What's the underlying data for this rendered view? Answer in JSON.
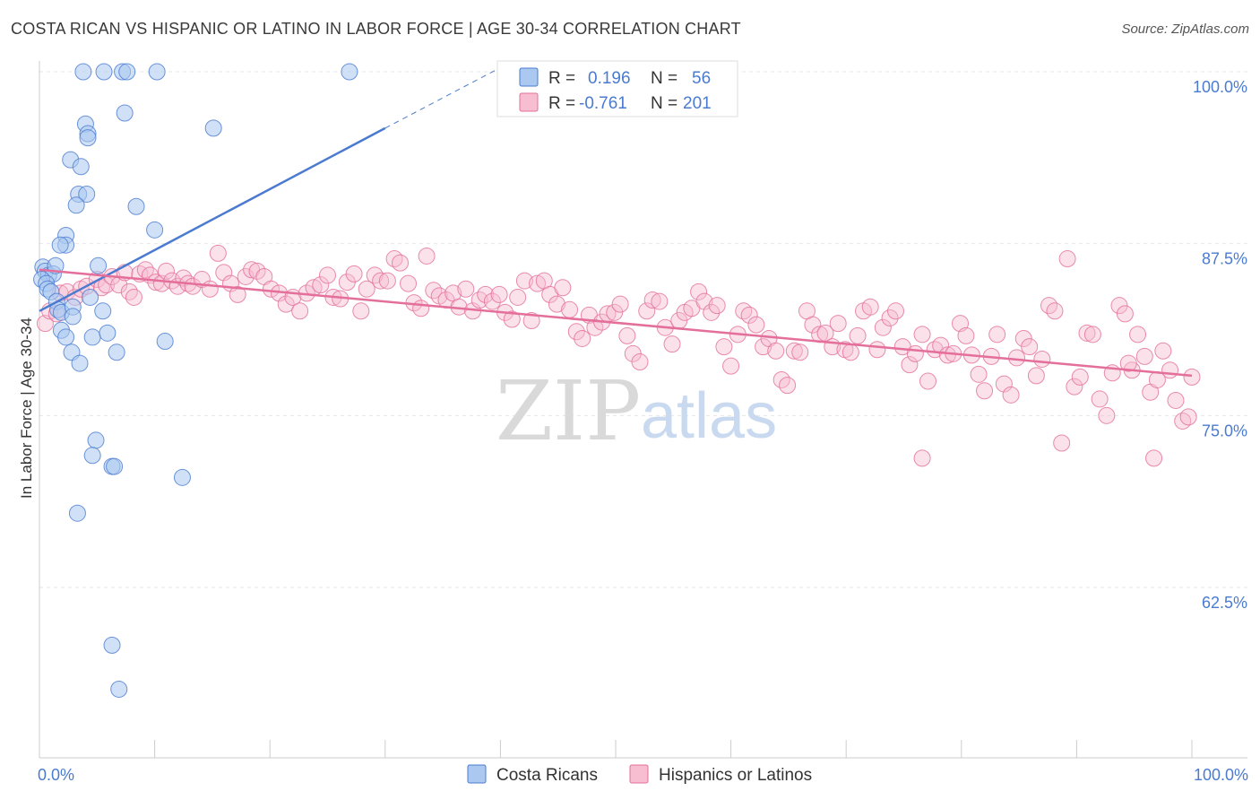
{
  "title": "COSTA RICAN VS HISPANIC OR LATINO IN LABOR FORCE | AGE 30-34 CORRELATION CHART",
  "source": "Source: ZipAtlas.com",
  "watermark": {
    "zip": "ZIP",
    "atlas": "atlas"
  },
  "legend": {
    "r_label": "R =",
    "n_label": "N =",
    "series": [
      {
        "r": "0.196",
        "n": "56",
        "color": "#4a7bd0",
        "fill": "#aac8f0"
      },
      {
        "r": "-0.761",
        "n": "201",
        "color": "#e36f9a",
        "fill": "#f7bdd0"
      }
    ]
  },
  "bottom_legend": [
    "Costa Ricans",
    "Hispanics or Latinos"
  ],
  "chart_data": {
    "type": "scatter",
    "title": "COSTA RICAN VS HISPANIC OR LATINO IN LABOR FORCE | AGE 30-34 CORRELATION CHART",
    "xlabel": "",
    "ylabel": "In Labor Force | Age 30-34",
    "xlim": [
      0,
      100
    ],
    "ylim": [
      51,
      100
    ],
    "x_tick_labels": [
      "0.0%",
      "100.0%"
    ],
    "y_ticks": [
      62.5,
      75.0,
      87.5,
      100.0
    ],
    "y_tick_labels": [
      "62.5%",
      "75.0%",
      "87.5%",
      "100.0%"
    ],
    "grid": true,
    "series": [
      {
        "name": "Costa Ricans",
        "color": "#4a7bd0",
        "fill": "#aac8f0",
        "trend": {
          "x0": 0.0,
          "y0": 82.6,
          "x1": 30.0,
          "y1": 95.9,
          "dash_to_x": 40.0,
          "dash_to_y": 100.3
        },
        "points": [
          [
            3.8,
            100.0
          ],
          [
            5.6,
            100.0
          ],
          [
            7.2,
            100.0
          ],
          [
            7.6,
            100.0
          ],
          [
            10.2,
            100.0
          ],
          [
            26.9,
            100.0
          ],
          [
            7.4,
            97.0
          ],
          [
            4.0,
            96.2
          ],
          [
            4.2,
            95.5
          ],
          [
            4.2,
            95.2
          ],
          [
            15.1,
            95.9
          ],
          [
            2.7,
            93.6
          ],
          [
            3.6,
            93.1
          ],
          [
            3.4,
            91.1
          ],
          [
            4.1,
            91.1
          ],
          [
            3.2,
            90.3
          ],
          [
            8.4,
            90.2
          ],
          [
            10.0,
            88.5
          ],
          [
            2.3,
            88.1
          ],
          [
            2.3,
            87.4
          ],
          [
            1.8,
            87.4
          ],
          [
            0.3,
            85.8
          ],
          [
            0.5,
            85.5
          ],
          [
            0.8,
            85.2
          ],
          [
            1.2,
            85.3
          ],
          [
            1.4,
            85.9
          ],
          [
            5.1,
            85.9
          ],
          [
            0.2,
            84.9
          ],
          [
            0.6,
            84.6
          ],
          [
            0.7,
            84.2
          ],
          [
            1.0,
            84.0
          ],
          [
            4.4,
            83.6
          ],
          [
            1.5,
            83.3
          ],
          [
            1.6,
            82.7
          ],
          [
            1.9,
            82.5
          ],
          [
            2.9,
            82.9
          ],
          [
            5.5,
            82.6
          ],
          [
            2.9,
            82.2
          ],
          [
            1.9,
            81.2
          ],
          [
            2.3,
            80.7
          ],
          [
            4.6,
            80.7
          ],
          [
            5.9,
            81.0
          ],
          [
            10.9,
            80.4
          ],
          [
            2.8,
            79.6
          ],
          [
            6.7,
            79.6
          ],
          [
            3.5,
            78.8
          ],
          [
            4.9,
            73.2
          ],
          [
            4.6,
            72.1
          ],
          [
            6.3,
            71.3
          ],
          [
            6.5,
            71.3
          ],
          [
            12.4,
            70.5
          ],
          [
            3.3,
            67.9
          ],
          [
            6.3,
            58.3
          ],
          [
            6.9,
            55.1
          ]
        ]
      },
      {
        "name": "Hispanics or Latinos",
        "color": "#e36f9a",
        "fill": "#f7bdd0",
        "trend": {
          "x0": 0.0,
          "y0": 85.6,
          "x1": 100.0,
          "y1": 77.9
        },
        "points": [
          [
            0.5,
            81.7
          ],
          [
            0.9,
            82.6
          ],
          [
            1.5,
            82.4
          ],
          [
            1.8,
            83.9
          ],
          [
            2.4,
            84.0
          ],
          [
            3.1,
            83.6
          ],
          [
            3.6,
            84.2
          ],
          [
            4.1,
            84.4
          ],
          [
            5.0,
            84.9
          ],
          [
            5.4,
            84.3
          ],
          [
            5.8,
            84.5
          ],
          [
            6.3,
            85.1
          ],
          [
            6.9,
            84.5
          ],
          [
            7.4,
            85.4
          ],
          [
            7.8,
            84.0
          ],
          [
            8.2,
            83.6
          ],
          [
            8.7,
            85.3
          ],
          [
            9.2,
            85.6
          ],
          [
            9.6,
            85.2
          ],
          [
            10.1,
            84.7
          ],
          [
            10.6,
            84.6
          ],
          [
            11.0,
            85.5
          ],
          [
            11.5,
            84.8
          ],
          [
            12.0,
            84.4
          ],
          [
            12.5,
            85.0
          ],
          [
            12.9,
            84.6
          ],
          [
            13.3,
            84.4
          ],
          [
            14.1,
            84.9
          ],
          [
            14.8,
            84.2
          ],
          [
            15.5,
            86.8
          ],
          [
            16.0,
            85.4
          ],
          [
            16.6,
            84.6
          ],
          [
            17.2,
            83.8
          ],
          [
            17.9,
            85.1
          ],
          [
            18.4,
            85.6
          ],
          [
            18.9,
            85.5
          ],
          [
            19.5,
            85.1
          ],
          [
            20.1,
            84.2
          ],
          [
            20.8,
            83.9
          ],
          [
            21.4,
            83.1
          ],
          [
            22.0,
            83.6
          ],
          [
            22.6,
            82.6
          ],
          [
            23.2,
            83.9
          ],
          [
            23.8,
            84.3
          ],
          [
            24.4,
            84.5
          ],
          [
            25.0,
            85.2
          ],
          [
            25.5,
            83.6
          ],
          [
            26.1,
            83.5
          ],
          [
            26.7,
            84.7
          ],
          [
            27.3,
            85.3
          ],
          [
            27.9,
            82.6
          ],
          [
            28.4,
            84.2
          ],
          [
            29.1,
            85.2
          ],
          [
            29.6,
            84.8
          ],
          [
            30.2,
            84.8
          ],
          [
            30.8,
            86.4
          ],
          [
            31.3,
            86.1
          ],
          [
            32.0,
            84.6
          ],
          [
            32.5,
            83.2
          ],
          [
            33.1,
            82.8
          ],
          [
            33.6,
            86.6
          ],
          [
            34.2,
            84.1
          ],
          [
            34.7,
            83.7
          ],
          [
            35.3,
            83.4
          ],
          [
            35.9,
            83.9
          ],
          [
            36.4,
            82.9
          ],
          [
            37.0,
            84.2
          ],
          [
            37.6,
            82.6
          ],
          [
            38.2,
            83.4
          ],
          [
            38.7,
            83.8
          ],
          [
            39.3,
            83.3
          ],
          [
            39.9,
            83.8
          ],
          [
            40.4,
            82.5
          ],
          [
            41.0,
            82.0
          ],
          [
            41.5,
            83.6
          ],
          [
            42.1,
            84.8
          ],
          [
            42.7,
            81.9
          ],
          [
            43.2,
            84.6
          ],
          [
            43.8,
            84.8
          ],
          [
            44.3,
            83.8
          ],
          [
            44.9,
            83.1
          ],
          [
            45.4,
            84.3
          ],
          [
            46.0,
            82.7
          ],
          [
            46.6,
            81.1
          ],
          [
            47.1,
            80.6
          ],
          [
            47.7,
            82.3
          ],
          [
            48.2,
            81.4
          ],
          [
            48.8,
            81.8
          ],
          [
            49.3,
            82.4
          ],
          [
            49.9,
            82.5
          ],
          [
            50.4,
            83.1
          ],
          [
            51.0,
            80.8
          ],
          [
            51.5,
            79.5
          ],
          [
            52.1,
            78.9
          ],
          [
            52.7,
            82.6
          ],
          [
            53.2,
            83.4
          ],
          [
            53.8,
            83.3
          ],
          [
            54.3,
            81.4
          ],
          [
            54.9,
            80.2
          ],
          [
            55.5,
            81.9
          ],
          [
            56.0,
            82.5
          ],
          [
            56.6,
            82.8
          ],
          [
            57.2,
            84.0
          ],
          [
            57.7,
            83.3
          ],
          [
            58.3,
            82.5
          ],
          [
            58.8,
            83.0
          ],
          [
            59.4,
            80.0
          ],
          [
            60.0,
            78.6
          ],
          [
            60.6,
            80.9
          ],
          [
            61.1,
            82.6
          ],
          [
            61.6,
            82.3
          ],
          [
            62.2,
            81.6
          ],
          [
            62.8,
            80.0
          ],
          [
            63.3,
            80.6
          ],
          [
            63.9,
            79.7
          ],
          [
            64.4,
            77.6
          ],
          [
            64.9,
            77.2
          ],
          [
            65.5,
            79.7
          ],
          [
            66.0,
            79.6
          ],
          [
            66.6,
            82.6
          ],
          [
            67.1,
            81.6
          ],
          [
            67.7,
            80.9
          ],
          [
            68.2,
            81.0
          ],
          [
            68.8,
            80.0
          ],
          [
            69.3,
            81.7
          ],
          [
            69.9,
            79.8
          ],
          [
            70.4,
            79.6
          ],
          [
            71.0,
            80.8
          ],
          [
            71.5,
            82.6
          ],
          [
            72.1,
            82.9
          ],
          [
            72.7,
            79.8
          ],
          [
            73.2,
            81.4
          ],
          [
            73.8,
            82.1
          ],
          [
            74.3,
            82.6
          ],
          [
            74.9,
            80.0
          ],
          [
            75.5,
            78.7
          ],
          [
            76.0,
            79.5
          ],
          [
            76.6,
            80.9
          ],
          [
            77.1,
            77.5
          ],
          [
            77.7,
            79.8
          ],
          [
            78.2,
            80.1
          ],
          [
            78.8,
            79.4
          ],
          [
            79.3,
            79.5
          ],
          [
            79.9,
            81.7
          ],
          [
            80.4,
            80.8
          ],
          [
            80.9,
            79.4
          ],
          [
            81.5,
            78.0
          ],
          [
            82.0,
            76.8
          ],
          [
            82.6,
            79.3
          ],
          [
            83.1,
            80.9
          ],
          [
            83.7,
            77.3
          ],
          [
            84.3,
            76.5
          ],
          [
            84.8,
            79.2
          ],
          [
            85.4,
            80.6
          ],
          [
            85.9,
            80.0
          ],
          [
            86.5,
            77.9
          ],
          [
            87.0,
            79.1
          ],
          [
            87.6,
            83.0
          ],
          [
            88.1,
            82.6
          ],
          [
            88.7,
            73.0
          ],
          [
            89.2,
            86.4
          ],
          [
            89.8,
            77.1
          ],
          [
            90.3,
            77.8
          ],
          [
            90.9,
            81.0
          ],
          [
            91.4,
            80.9
          ],
          [
            92.0,
            76.2
          ],
          [
            92.6,
            75.0
          ],
          [
            93.1,
            78.1
          ],
          [
            93.7,
            83.0
          ],
          [
            94.2,
            82.4
          ],
          [
            94.8,
            78.3
          ],
          [
            95.3,
            80.9
          ],
          [
            95.9,
            79.3
          ],
          [
            96.4,
            76.7
          ],
          [
            97.0,
            77.6
          ],
          [
            97.5,
            79.7
          ],
          [
            98.1,
            78.3
          ],
          [
            98.6,
            76.1
          ],
          [
            99.2,
            74.6
          ],
          [
            99.7,
            74.9
          ],
          [
            100.0,
            77.8
          ],
          [
            96.7,
            71.9
          ],
          [
            76.6,
            71.9
          ],
          [
            94.5,
            78.8
          ]
        ]
      }
    ]
  }
}
